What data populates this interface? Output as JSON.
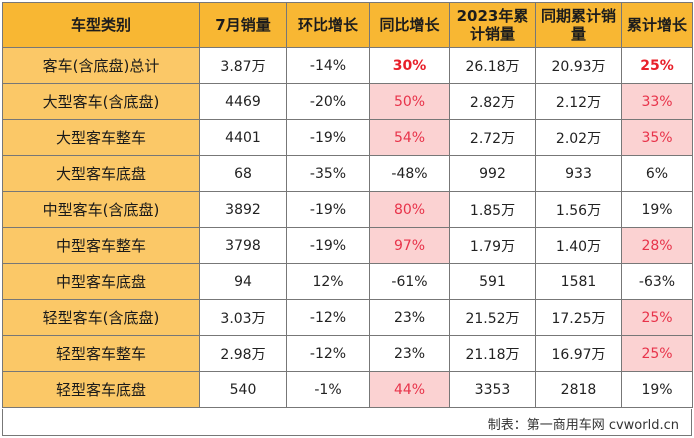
{
  "table": {
    "headers": [
      "车型类别",
      "7月销量",
      "环比增长",
      "同比增长",
      "2023年累计销量",
      "同期累计销量",
      "累计增长"
    ],
    "rows": [
      {
        "cells": [
          "客车(含底盘)总计",
          "3.87万",
          "-14%",
          "30%",
          "26.18万",
          "20.93万",
          "25%"
        ],
        "styles": [
          "",
          "",
          "",
          "red",
          "",
          "",
          "red"
        ]
      },
      {
        "cells": [
          "大型客车(含底盘)",
          "4469",
          "-20%",
          "50%",
          "2.82万",
          "2.12万",
          "33%"
        ],
        "styles": [
          "",
          "",
          "",
          "pink",
          "",
          "",
          "pink"
        ]
      },
      {
        "cells": [
          "大型客车整车",
          "4401",
          "-19%",
          "54%",
          "2.72万",
          "2.02万",
          "35%"
        ],
        "styles": [
          "",
          "",
          "",
          "pink",
          "",
          "",
          "pink"
        ]
      },
      {
        "cells": [
          "大型客车底盘",
          "68",
          "-35%",
          "-48%",
          "992",
          "933",
          "6%"
        ],
        "styles": [
          "",
          "",
          "",
          "",
          "",
          "",
          ""
        ]
      },
      {
        "cells": [
          "中型客车(含底盘)",
          "3892",
          "-19%",
          "80%",
          "1.85万",
          "1.56万",
          "19%"
        ],
        "styles": [
          "",
          "",
          "",
          "pink",
          "",
          "",
          ""
        ]
      },
      {
        "cells": [
          "中型客车整车",
          "3798",
          "-19%",
          "97%",
          "1.79万",
          "1.40万",
          "28%"
        ],
        "styles": [
          "",
          "",
          "",
          "pink",
          "",
          "",
          "pink"
        ]
      },
      {
        "cells": [
          "中型客车底盘",
          "94",
          "12%",
          "-61%",
          "591",
          "1581",
          "-63%"
        ],
        "styles": [
          "",
          "",
          "",
          "",
          "",
          "",
          ""
        ]
      },
      {
        "cells": [
          "轻型客车(含底盘)",
          "3.03万",
          "-12%",
          "23%",
          "21.52万",
          "17.25万",
          "25%"
        ],
        "styles": [
          "",
          "",
          "",
          "",
          "",
          "",
          "pink"
        ]
      },
      {
        "cells": [
          "轻型客车整车",
          "2.98万",
          "-12%",
          "23%",
          "21.18万",
          "16.97万",
          "25%"
        ],
        "styles": [
          "",
          "",
          "",
          "",
          "",
          "",
          "pink"
        ]
      },
      {
        "cells": [
          "轻型客车底盘",
          "540",
          "-1%",
          "44%",
          "3353",
          "2818",
          "19%"
        ],
        "styles": [
          "",
          "",
          "",
          "pink",
          "",
          "",
          ""
        ]
      }
    ]
  },
  "footer": {
    "credit": "制表：第一商用车网 cvworld.cn"
  },
  "colors": {
    "header_bg": "#f8b733",
    "name_col_bg": "#fbc867",
    "highlight_bg": "#fbd2d2",
    "highlight_text": "#e8334a",
    "bold_red_text": "#e8202a"
  }
}
